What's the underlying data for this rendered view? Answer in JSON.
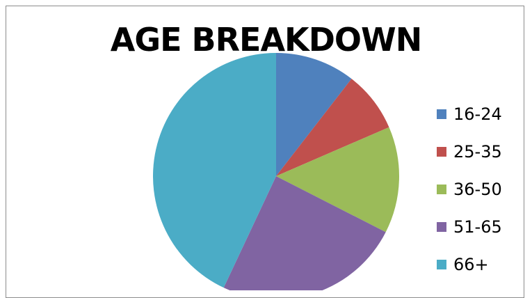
{
  "chart_data": {
    "type": "pie",
    "title": "AGE BREAKDOWN",
    "categories": [
      "16-24",
      "25-35",
      "36-50",
      "51-65",
      "66+"
    ],
    "values": [
      10.5,
      8,
      14,
      24.5,
      43
    ],
    "colors": [
      "#4f81bd",
      "#c0504d",
      "#9bbb59",
      "#8064a2",
      "#4bacc6"
    ],
    "legend_position": "right",
    "start_angle": "12 o'clock, clockwise"
  }
}
